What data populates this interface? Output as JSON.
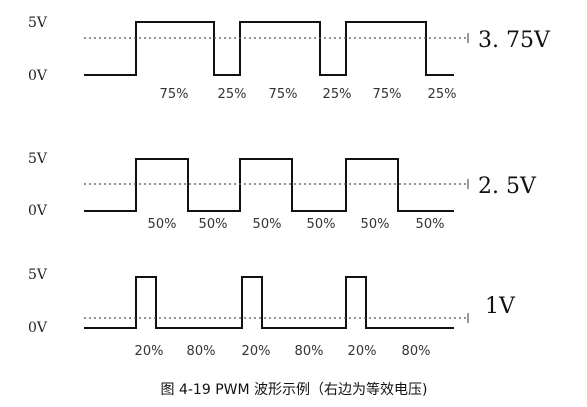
{
  "caption": "图 4-19   PWM 波形示例（右边为等效电压)",
  "panels": [
    {
      "high_label": "5V",
      "low_label": "0V",
      "equivalent_label": "3. 75V",
      "duty": 0.75,
      "pulse_labels": [
        "75%",
        "25%",
        "75%",
        "25%",
        "75%",
        "25%"
      ]
    },
    {
      "high_label": "5V",
      "low_label": "0V",
      "equivalent_label": "2. 5V",
      "duty": 0.5,
      "pulse_labels": [
        "50%",
        "50%",
        "50%",
        "50%",
        "50%",
        "50%"
      ]
    },
    {
      "high_label": "5V",
      "low_label": "0V",
      "equivalent_label": "1V",
      "duty": 0.2,
      "pulse_labels": [
        "20%",
        "80%",
        "20%",
        "80%",
        "20%",
        "80%"
      ]
    }
  ]
}
